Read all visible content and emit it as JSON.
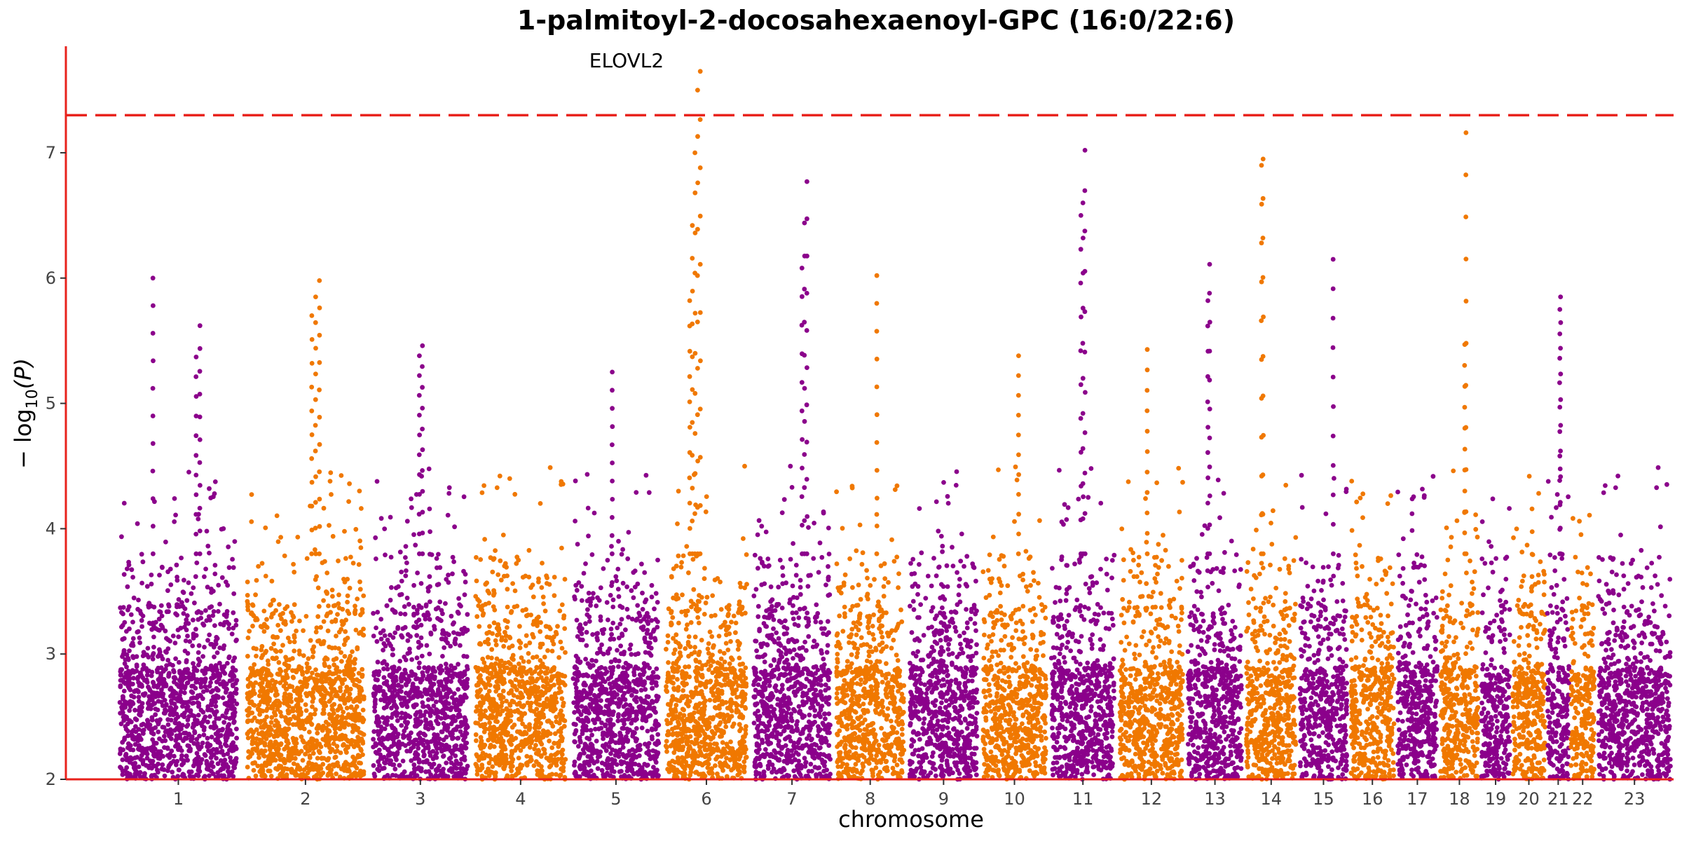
{
  "chart_data": {
    "type": "scatter",
    "subtype": "manhattan",
    "title": "1-palmitoyl-2-docosahexaenoyl-GPC (16:0/22:6)",
    "xlabel": "chromosome",
    "ylabel_prefix": "− log",
    "ylabel_sub": "10",
    "ylabel_suffix": "(P)",
    "ylim": [
      2,
      7.85
    ],
    "yticks": [
      "2",
      "3",
      "4",
      "5",
      "6",
      "7"
    ],
    "significance_threshold": 7.3,
    "threshold_color": "#e8221c",
    "series_colors": [
      "#8b008b",
      "#f07800"
    ],
    "axis_color": "#e8221c",
    "grid": false,
    "annotation": {
      "label": "ELOVL2",
      "chromosome": "6",
      "value": 7.65
    },
    "chromosomes": [
      {
        "label": "1",
        "pos": 0.5,
        "width": 1.3,
        "color": 0
      },
      {
        "label": "2",
        "pos": 1.8,
        "width": 1.3,
        "color": 1
      },
      {
        "label": "3",
        "pos": 3.1,
        "width": 1.05,
        "color": 0
      },
      {
        "label": "4",
        "pos": 4.15,
        "width": 1.0,
        "color": 1
      },
      {
        "label": "5",
        "pos": 5.15,
        "width": 0.95,
        "color": 0
      },
      {
        "label": "6",
        "pos": 6.1,
        "width": 0.9,
        "color": 1
      },
      {
        "label": "7",
        "pos": 7.0,
        "width": 0.85,
        "color": 0
      },
      {
        "label": "8",
        "pos": 7.85,
        "width": 0.75,
        "color": 1
      },
      {
        "label": "9",
        "pos": 8.6,
        "width": 0.75,
        "color": 0
      },
      {
        "label": "10",
        "pos": 9.35,
        "width": 0.7,
        "color": 1
      },
      {
        "label": "11",
        "pos": 10.05,
        "width": 0.7,
        "color": 0
      },
      {
        "label": "12",
        "pos": 10.75,
        "width": 0.7,
        "color": 1
      },
      {
        "label": "13",
        "pos": 11.45,
        "width": 0.6,
        "color": 0
      },
      {
        "label": "14",
        "pos": 12.05,
        "width": 0.55,
        "color": 1
      },
      {
        "label": "15",
        "pos": 12.6,
        "width": 0.52,
        "color": 0
      },
      {
        "label": "16",
        "pos": 13.12,
        "width": 0.48,
        "color": 1
      },
      {
        "label": "17",
        "pos": 13.6,
        "width": 0.44,
        "color": 0
      },
      {
        "label": "18",
        "pos": 14.04,
        "width": 0.42,
        "color": 1
      },
      {
        "label": "19",
        "pos": 14.46,
        "width": 0.32,
        "color": 0
      },
      {
        "label": "20",
        "pos": 14.78,
        "width": 0.36,
        "color": 1
      },
      {
        "label": "21",
        "pos": 15.14,
        "width": 0.24,
        "color": 0
      },
      {
        "label": "22",
        "pos": 15.38,
        "width": 0.26,
        "color": 1
      },
      {
        "label": "23",
        "pos": 15.64,
        "width": 0.8,
        "color": 0
      }
    ],
    "peaks": [
      {
        "chr": "1",
        "value": 6.0
      },
      {
        "chr": "1",
        "value": 5.62
      },
      {
        "chr": "1",
        "value": 5.37
      },
      {
        "chr": "2",
        "value": 5.98
      },
      {
        "chr": "2",
        "value": 5.85
      },
      {
        "chr": "2",
        "value": 5.7
      },
      {
        "chr": "3",
        "value": 5.46
      },
      {
        "chr": "3",
        "value": 5.38
      },
      {
        "chr": "5",
        "value": 5.25
      },
      {
        "chr": "6",
        "value": 7.65
      },
      {
        "chr": "6",
        "value": 7.5
      },
      {
        "chr": "6",
        "value": 7.0
      },
      {
        "chr": "6",
        "value": 6.42
      },
      {
        "chr": "6",
        "value": 5.82
      },
      {
        "chr": "7",
        "value": 6.77
      },
      {
        "chr": "7",
        "value": 6.44
      },
      {
        "chr": "7",
        "value": 6.08
      },
      {
        "chr": "8",
        "value": 6.02
      },
      {
        "chr": "10",
        "value": 5.38
      },
      {
        "chr": "11",
        "value": 7.02
      },
      {
        "chr": "11",
        "value": 6.6
      },
      {
        "chr": "11",
        "value": 6.5
      },
      {
        "chr": "12",
        "value": 5.43
      },
      {
        "chr": "13",
        "value": 6.11
      },
      {
        "chr": "13",
        "value": 5.82
      },
      {
        "chr": "14",
        "value": 6.95
      },
      {
        "chr": "14",
        "value": 6.9
      },
      {
        "chr": "15",
        "value": 6.15
      },
      {
        "chr": "18",
        "value": 7.16
      },
      {
        "chr": "18",
        "value": 5.47
      },
      {
        "chr": "21",
        "value": 5.85
      },
      {
        "chr": "21",
        "value": 5.75
      }
    ]
  }
}
